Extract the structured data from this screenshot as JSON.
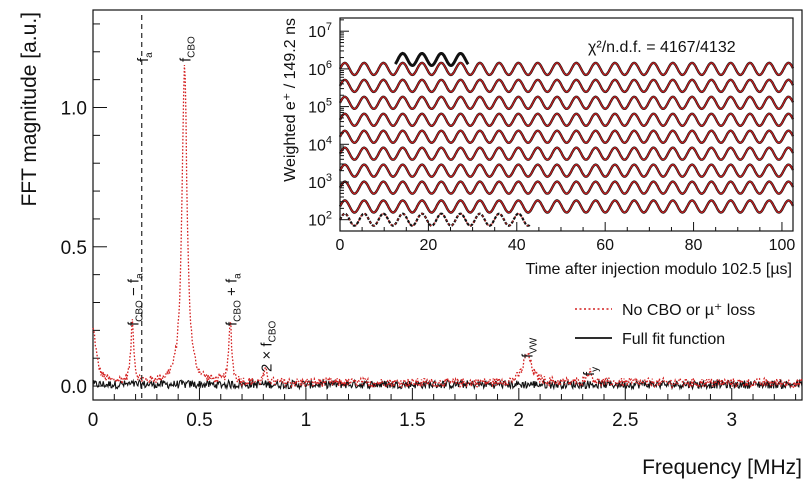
{
  "chart_data": [
    {
      "type": "line",
      "xlabel": "Frequency [MHz]",
      "ylabel": "FFT magnitude [a.u.]",
      "xlim": [
        0,
        3.33
      ],
      "ylim": [
        -0.05,
        1.35
      ],
      "x_ticks": [
        "0",
        "0.5",
        "1",
        "1.5",
        "2",
        "2.5",
        "3"
      ],
      "y_ticks": [
        "0.0",
        "0.5",
        "1.0"
      ],
      "legend_position": "right",
      "series": [
        {
          "name": "No CBO or µ⁺ loss",
          "color": "#d42020",
          "style": "dotted",
          "peaks": [
            {
              "x": 0.0,
              "y": 0.19,
              "width": 0.018
            },
            {
              "x": 0.185,
              "y": 0.22,
              "width": 0.008
            },
            {
              "x": 0.43,
              "y": 1.14,
              "width": 0.014
            },
            {
              "x": 0.645,
              "y": 0.22,
              "width": 0.008
            },
            {
              "x": 0.81,
              "y": 0.04,
              "width": 0.01
            },
            {
              "x": 2.04,
              "y": 0.1,
              "width": 0.025
            },
            {
              "x": 2.33,
              "y": 0.04,
              "width": 0.015
            }
          ]
        },
        {
          "name": "Full fit function",
          "color": "#111111",
          "style": "solid",
          "noise_amplitude": 0.02
        }
      ],
      "vertical_line": {
        "x": 0.229,
        "style": "dashed"
      },
      "annotations": [
        {
          "text": "f",
          "sub": "a",
          "x": 0.229
        },
        {
          "text": "f",
          "sub": "CBO",
          "x": 0.43
        },
        {
          "text": "f",
          "sub": "CBO",
          "suffix": " − f",
          "suffix_sub": "a",
          "x": 0.185
        },
        {
          "text": "f",
          "sub": "CBO",
          "suffix": " + f",
          "suffix_sub": "a",
          "x": 0.645
        },
        {
          "text": "2 × f",
          "sub": "CBO",
          "x": 0.81
        },
        {
          "text": "f",
          "sub": "VW",
          "x": 2.04
        },
        {
          "text": "f",
          "sub": "y",
          "x": 2.33
        }
      ],
      "legend": [
        {
          "text": "No CBO or µ⁺ loss"
        },
        {
          "text": "Full fit function"
        }
      ]
    },
    {
      "type": "line",
      "xlabel": "Time after injection modulo 102.5 [µs]",
      "ylabel": "Weighted e⁺ / 149.2 ns",
      "xlim": [
        0,
        102.5
      ],
      "ylim_log10": [
        1.7,
        7.35
      ],
      "y_scale": "log",
      "x_ticks": [
        "0",
        "20",
        "40",
        "60",
        "80",
        "100"
      ],
      "y_ticks": [
        {
          "base": "10",
          "exp": "2"
        },
        {
          "base": "10",
          "exp": "3"
        },
        {
          "base": "10",
          "exp": "4"
        },
        {
          "base": "10",
          "exp": "5"
        },
        {
          "base": "10",
          "exp": "6"
        },
        {
          "base": "10",
          "exp": "7"
        }
      ],
      "chi2_label": "χ²/n.d.f. = 4167/4132",
      "wiggle": {
        "period_us": 4.365,
        "amplitude_log10": 0.16,
        "bands_log10": [
          6.0,
          5.55,
          5.1,
          4.65,
          4.2,
          3.75,
          3.3,
          2.85,
          2.35
        ],
        "first_segment": {
          "x": [
            12.5,
            29.0
          ],
          "level_log10": 6.25
        },
        "last_segment": {
          "x": [
            0,
            43.0
          ],
          "level_log10": 2.0
        }
      }
    }
  ]
}
